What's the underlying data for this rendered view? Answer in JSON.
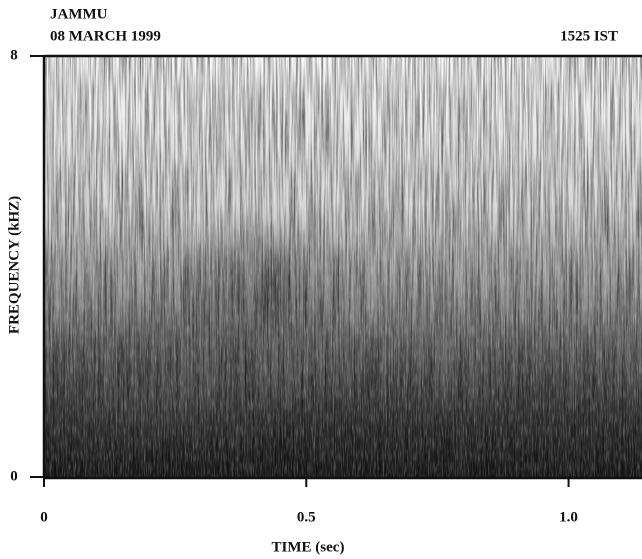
{
  "chart_data": {
    "type": "spectrogram",
    "title": "JAMMU",
    "subtitle": "08 MARCH 1999",
    "annotation": "1525 IST",
    "x_label": "TIME (sec)",
    "y_label": "FREQUENCY (kHZ)",
    "xlim": [
      0,
      1.14
    ],
    "xticks": [
      0,
      0.5,
      {
        "value": 1,
        "label": "1.0"
      }
    ],
    "ylim": [
      0,
      8
    ],
    "yticks": [
      0,
      8
    ],
    "color": "#1a1a1a"
  }
}
